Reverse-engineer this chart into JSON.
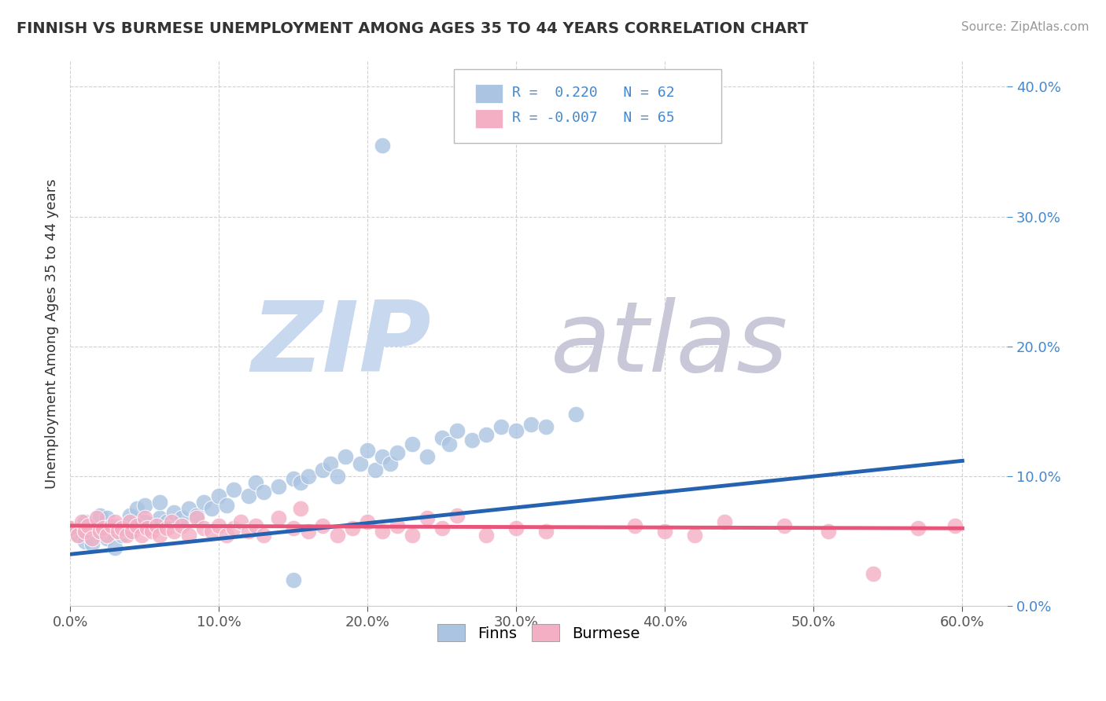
{
  "title": "FINNISH VS BURMESE UNEMPLOYMENT AMONG AGES 35 TO 44 YEARS CORRELATION CHART",
  "source": "Source: ZipAtlas.com",
  "xlim": [
    0.0,
    0.63
  ],
  "ylim": [
    0.0,
    0.42
  ],
  "ylabel": "Unemployment Among Ages 35 to 44 years",
  "finns_R": 0.22,
  "finns_N": 62,
  "burmese_R": -0.007,
  "burmese_N": 65,
  "finns_color": "#aac4e2",
  "finns_edge_color": "#aac4e2",
  "finns_line_color": "#2563b0",
  "burmese_color": "#f4afc5",
  "burmese_edge_color": "#f4afc5",
  "burmese_line_color": "#e8547a",
  "watermark_zip": "ZIP",
  "watermark_atlas": "atlas",
  "watermark_zip_color": "#c8d8ee",
  "watermark_atlas_color": "#c8c8d8",
  "tick_label_color": "#4488cc",
  "background_color": "#ffffff",
  "grid_color": "#cccccc",
  "blue_line_x0": 0.0,
  "blue_line_y0": 0.04,
  "blue_line_x1": 0.6,
  "blue_line_y1": 0.112,
  "pink_line_x0": 0.0,
  "pink_line_y0": 0.062,
  "pink_line_x1": 0.6,
  "pink_line_y1": 0.06
}
